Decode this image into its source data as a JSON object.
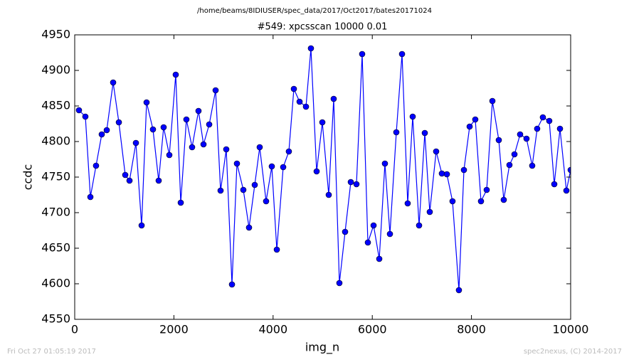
{
  "chart_data": {
    "type": "line",
    "suptitle": "/home/beams/8IDIUSER/spec_data/2017/Oct2017/bates20171024",
    "title": "#549: xpcsscan 10000 0.01",
    "xlabel": "img_n",
    "ylabel": "ccdc",
    "footer_left": "Fri Oct 27 01:05:19 2017",
    "footer_right": "spec2nexus, (C) 2014-2017",
    "x": [
      86,
      215,
      316,
      430,
      545,
      646,
      775,
      890,
      1019,
      1105,
      1234,
      1349,
      1449,
      1578,
      1693,
      1793,
      1908,
      2037,
      2138,
      2252,
      2367,
      2496,
      2597,
      2712,
      2841,
      2941,
      3056,
      3171,
      3271,
      3400,
      3515,
      3630,
      3730,
      3859,
      3974,
      4075,
      4204,
      4318,
      4419,
      4534,
      4663,
      4763,
      4878,
      4993,
      5122,
      5222,
      5337,
      5452,
      5567,
      5681,
      5796,
      5911,
      6026,
      6141,
      6255,
      6356,
      6485,
      6600,
      6714,
      6815,
      6944,
      7059,
      7159,
      7288,
      7403,
      7504,
      7618,
      7747,
      7848,
      7963,
      8077,
      8192,
      8307,
      8422,
      8551,
      8651,
      8766,
      8867,
      8981,
      9110,
      9225,
      9325,
      9440,
      9569,
      9670,
      9785,
      9914,
      10000
    ],
    "series": [
      {
        "name": "ccdc",
        "color": "#0000ff",
        "values": [
          4844,
          4835,
          4722,
          4766,
          4810,
          4816,
          4883,
          4827,
          4753,
          4745,
          4798,
          4682,
          4855,
          4817,
          4745,
          4820,
          4781,
          4894,
          4714,
          4831,
          4792,
          4843,
          4796,
          4824,
          4872,
          4731,
          4789,
          4599,
          4769,
          4732,
          4679,
          4739,
          4792,
          4716,
          4765,
          4648,
          4764,
          4786,
          4874,
          4856,
          4849,
          4931,
          4758,
          4827,
          4725,
          4860,
          4601,
          4673,
          4743,
          4740,
          4923,
          4658,
          4682,
          4635,
          4769,
          4670,
          4813,
          4923,
          4713,
          4835,
          4682,
          4812,
          4701,
          4786,
          4755,
          4754,
          4716,
          4591,
          4760,
          4821,
          4831,
          4716,
          4732,
          4857,
          4802,
          4718,
          4767,
          4782,
          4810,
          4804,
          4766,
          4818,
          4834,
          4829,
          4740,
          4818,
          4731,
          4760
        ]
      }
    ],
    "xlim": [
      0,
      10000
    ],
    "xticks": [
      0,
      2000,
      4000,
      6000,
      8000,
      10000
    ],
    "ylim": [
      4550,
      4950
    ],
    "yticks": [
      4550,
      4600,
      4650,
      4700,
      4750,
      4800,
      4850,
      4900,
      4950
    ],
    "grid": false
  }
}
